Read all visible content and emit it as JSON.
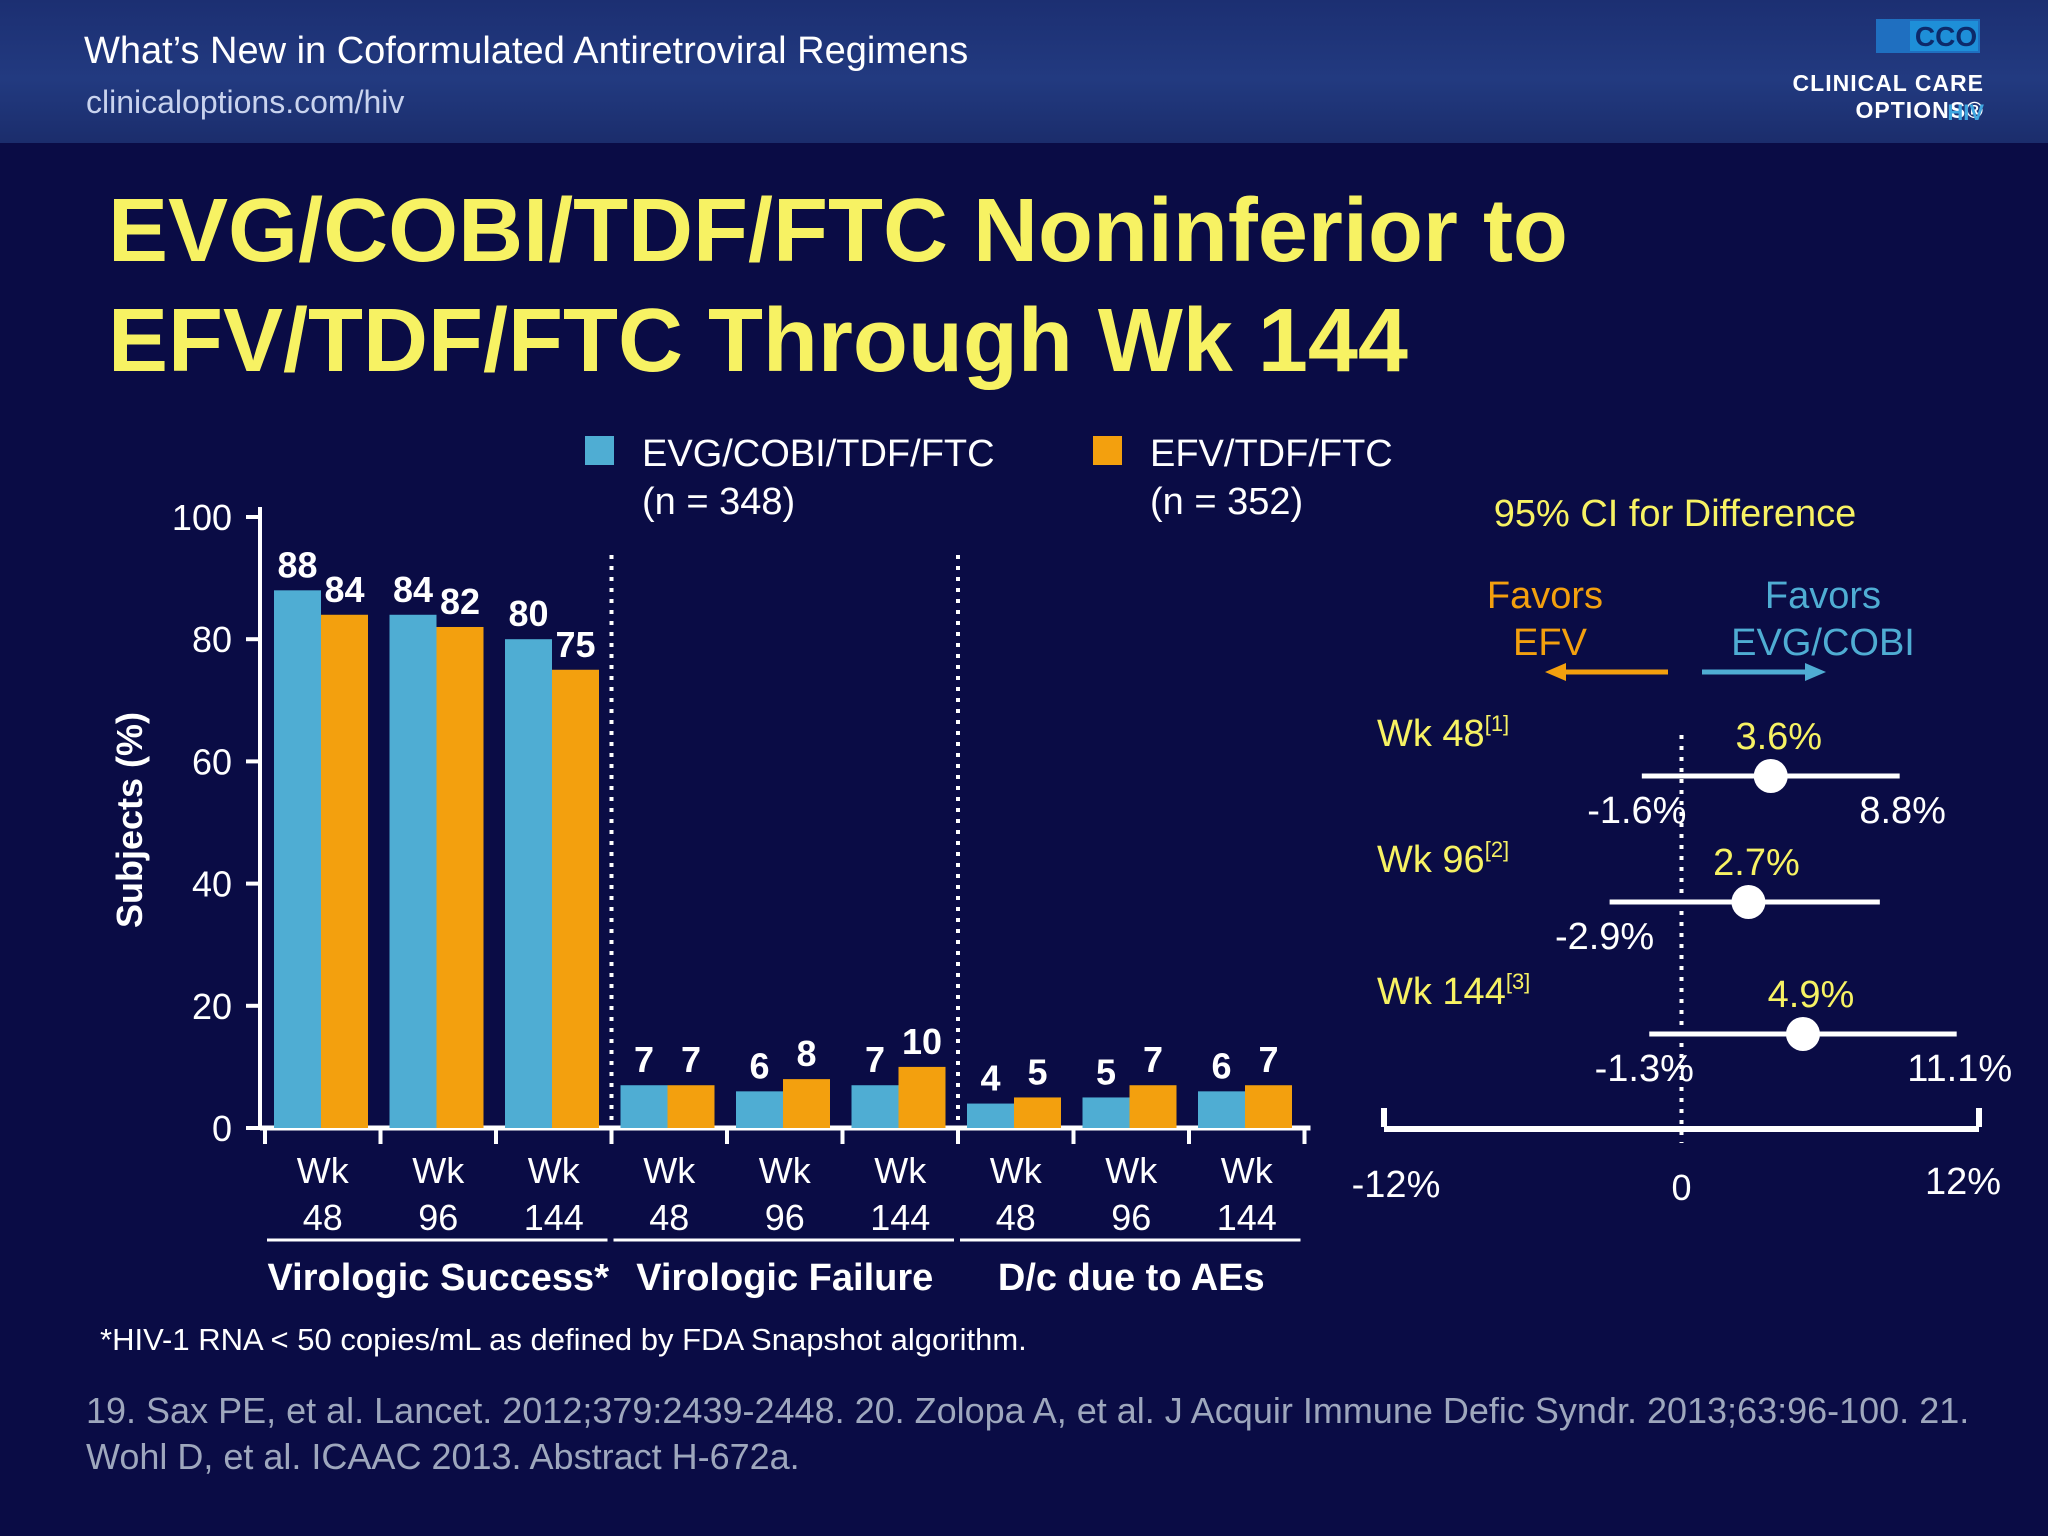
{
  "header": {
    "title": "What’s New in Coformulated Antiretroviral Regimens",
    "url": "clinicaloptions.com/hiv",
    "logo_mark": "CCO",
    "logo_text": "CLINICAL CARE OPTIONS®",
    "logo_sub": "HIV"
  },
  "slide": {
    "title_line1": "EVG/COBI/TDF/FTC Noninferior to",
    "title_line2": "EFV/TDF/FTC Through Wk 144"
  },
  "colors": {
    "evg": "#4fadd3",
    "efv": "#f3a00e",
    "yellow": "#f7f263",
    "background": "#0a0c45"
  },
  "chart_data": [
    {
      "type": "bar",
      "ylabel": "Subjects (%)",
      "ylim": [
        0,
        100
      ],
      "yticks": [
        0,
        20,
        40,
        60,
        80,
        100
      ],
      "legend": [
        {
          "name": "EVG/COBI/TDF/FTC",
          "n": "(n = 348)",
          "color": "#4fadd3"
        },
        {
          "name": "EFV/TDF/FTC",
          "n": "(n = 352)",
          "color": "#f3a00e"
        }
      ],
      "groups": [
        {
          "label": "Virologic Success*",
          "categories": [
            {
              "top": "Wk",
              "bottom": "48",
              "evg": 88,
              "efv": 84
            },
            {
              "top": "Wk",
              "bottom": "96",
              "evg": 84,
              "efv": 82
            },
            {
              "top": "Wk",
              "bottom": "144",
              "evg": 80,
              "efv": 75
            }
          ]
        },
        {
          "label": "Virologic Failure",
          "categories": [
            {
              "top": "Wk",
              "bottom": "48",
              "evg": 7,
              "efv": 7
            },
            {
              "top": "Wk",
              "bottom": "96",
              "evg": 6,
              "efv": 8
            },
            {
              "top": "Wk",
              "bottom": "144",
              "evg": 7,
              "efv": 10
            }
          ]
        },
        {
          "label": "D/c due to AEs",
          "categories": [
            {
              "top": "Wk",
              "bottom": "48",
              "evg": 4,
              "efv": 5
            },
            {
              "top": "Wk",
              "bottom": "96",
              "evg": 5,
              "efv": 7
            },
            {
              "top": "Wk",
              "bottom": "144",
              "evg": 6,
              "efv": 7
            }
          ]
        }
      ]
    },
    {
      "type": "forest",
      "title": "95% CI for Difference",
      "favors_left": [
        "Favors",
        "EFV"
      ],
      "favors_right": [
        "Favors",
        "EVG/COBI"
      ],
      "xlim": [
        -12,
        12
      ],
      "xtick_labels": [
        "-12%",
        "0",
        "12%"
      ],
      "rows": [
        {
          "label": "Wk 48",
          "ref": "[1]",
          "point": 3.6,
          "lower": -1.6,
          "upper": 8.8,
          "point_label": "3.6%",
          "lower_label": "-1.6%",
          "upper_label": "8.8%"
        },
        {
          "label": "Wk 96",
          "ref": "[2]",
          "point": 2.7,
          "lower": -2.9,
          "upper": 8.0,
          "point_label": "2.7%",
          "lower_label": "-2.9%",
          "upper_label": ""
        },
        {
          "label": "Wk 144",
          "ref": "[3]",
          "point": 4.9,
          "lower": -1.3,
          "upper": 11.1,
          "point_label": "4.9%",
          "lower_label": "-1.3%",
          "upper_label": "11.1%"
        }
      ]
    }
  ],
  "footnote": "*HIV-1 RNA < 50 copies/mL as defined by FDA Snapshot algorithm.",
  "references": "19. Sax PE, et al. Lancet. 2012;379:2439-2448. 20. Zolopa A, et al. J Acquir Immune Defic Syndr. 2013;63:96-100. 21. Wohl D, et al. ICAAC 2013. Abstract H-672a."
}
